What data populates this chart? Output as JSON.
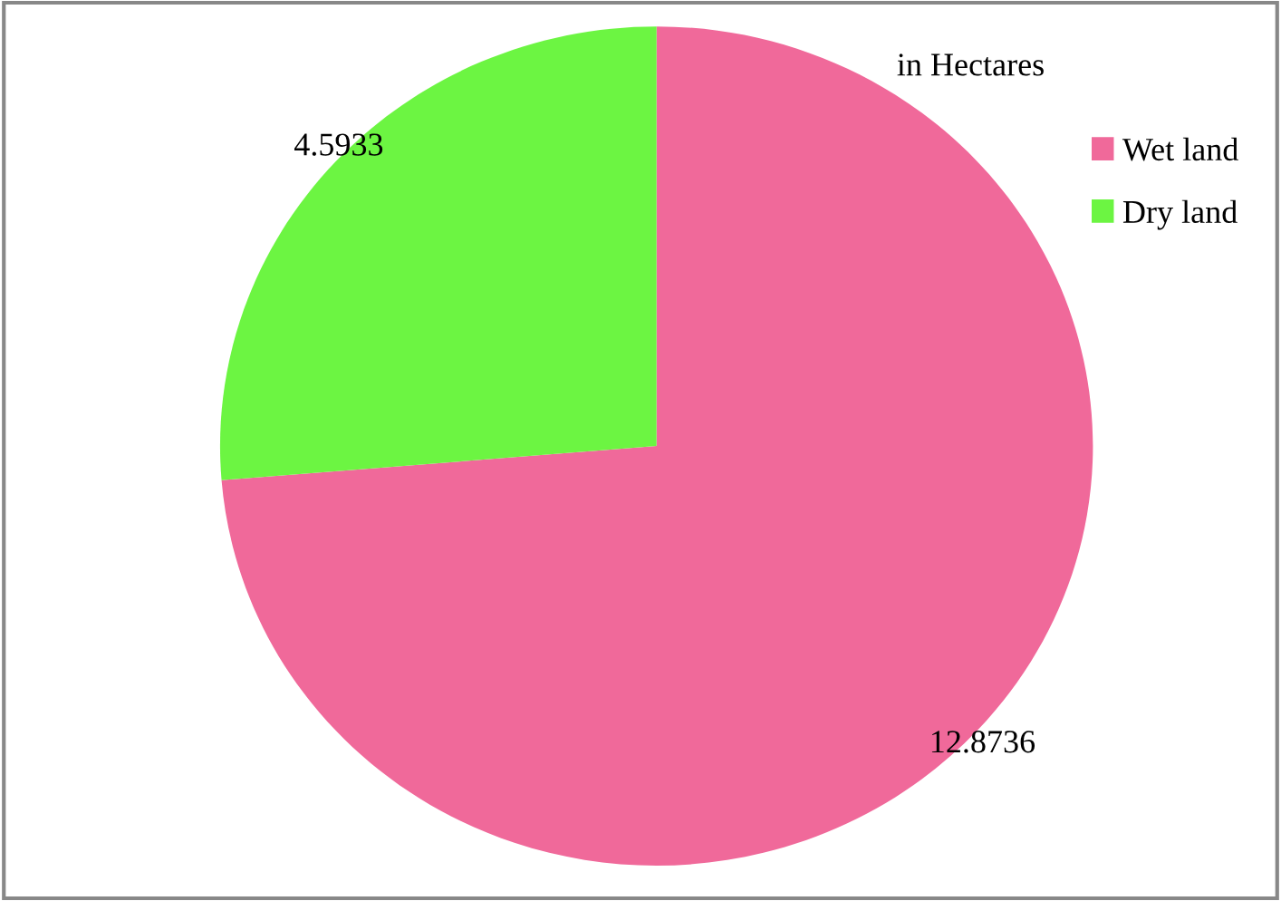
{
  "chart_data": {
    "type": "pie",
    "title": "in Hectares",
    "categories": [
      "Wet land",
      "Dry land"
    ],
    "values": [
      12.8736,
      4.5933
    ],
    "colors": [
      "#f0699a",
      "#6cf542"
    ],
    "data_labels": true,
    "legend": "top right"
  }
}
